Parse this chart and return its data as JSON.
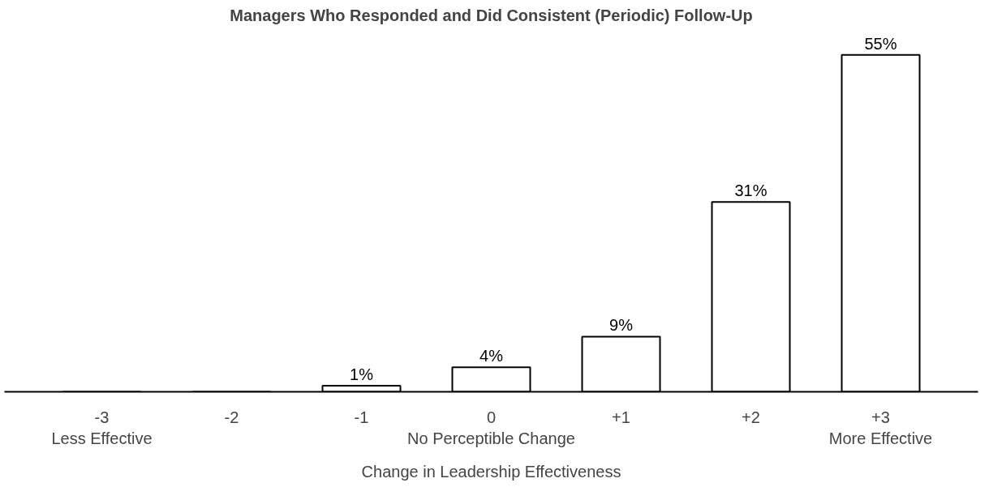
{
  "chart_data": {
    "type": "bar",
    "title": "Managers Who Responded and Did Consistent (Periodic) Follow-Up",
    "xlabel": "Change in Leadership Effectiveness",
    "categories": [
      "-3\nLess Effective",
      "-2",
      "-1",
      "0\nNo Perceptible Change",
      "+1",
      "+2",
      "+3\nMore Effective"
    ],
    "values": [
      0,
      0,
      1,
      4,
      9,
      31,
      55
    ],
    "value_labels": [
      null,
      null,
      "1%",
      "4%",
      "9%",
      "31%",
      "55%"
    ],
    "color": "#ffffff",
    "grid": false
  }
}
